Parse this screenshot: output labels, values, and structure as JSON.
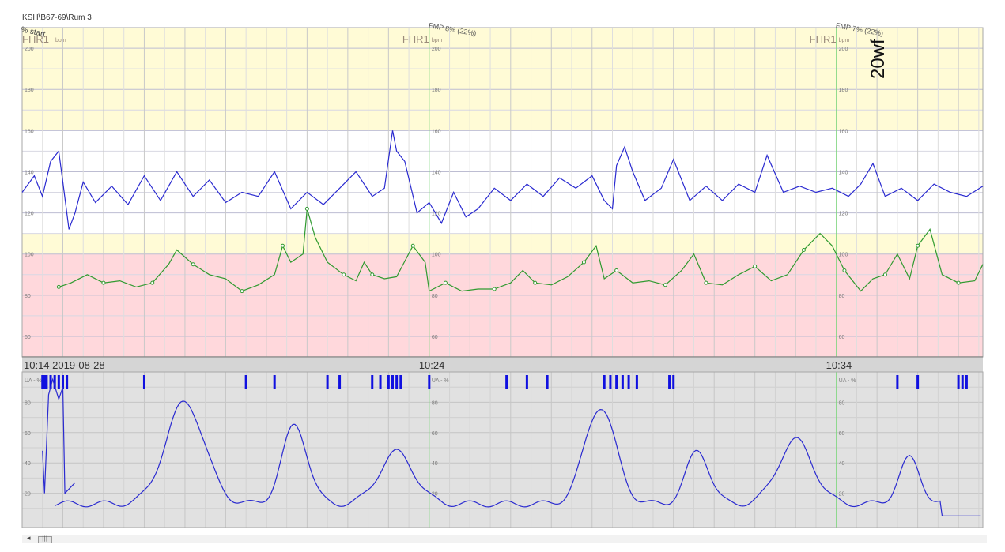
{
  "header": {
    "title": "KSH\\B67-69\\Rum 3",
    "start_note": "% start",
    "handwritten_note": "20wf"
  },
  "fmp_marks": [
    {
      "label": "FMP 8% (22%)",
      "time_min": 10.6
    },
    {
      "label": "FMP 7% (22%)",
      "time_min": 20.6
    }
  ],
  "colors": {
    "fhr": "#2a2ad0",
    "mhr": "#2f9a2f",
    "uterine": "#2a2ad0",
    "movement": "#1010e0",
    "normal_band": "#fffbd6",
    "alert_band": "#ffd8dc",
    "toco_bg": "#e1e1e1",
    "panel_divider": "#8a8a8a",
    "minute_marker": "#7fd67f"
  },
  "chart_data": [
    {
      "type": "line",
      "name": "fhr-panel",
      "channel_labels": [
        "FHR1",
        "FHR1",
        "FHR1"
      ],
      "unit": "bpm",
      "ylim": [
        50,
        210
      ],
      "yticks": [
        60,
        80,
        100,
        120,
        140,
        160,
        180,
        200
      ],
      "bands": [
        {
          "from": 160,
          "to": 210,
          "color": "normal_band"
        },
        {
          "from": 100,
          "to": 110,
          "color": "normal_band"
        },
        {
          "from": 50,
          "to": 100,
          "color": "alert_band"
        }
      ],
      "time_range_min": [
        0,
        23.6
      ],
      "series": [
        {
          "color": "fhr",
          "points": [
            [
              0,
              130
            ],
            [
              0.3,
              138
            ],
            [
              0.5,
              128
            ],
            [
              0.7,
              145
            ],
            [
              0.9,
              150
            ],
            [
              1.0,
              135
            ],
            [
              1.15,
              112
            ],
            [
              1.3,
              120
            ],
            [
              1.5,
              135
            ],
            [
              1.8,
              125
            ],
            [
              2.2,
              133
            ],
            [
              2.6,
              124
            ],
            [
              3.0,
              138
            ],
            [
              3.4,
              126
            ],
            [
              3.8,
              140
            ],
            [
              4.2,
              128
            ],
            [
              4.6,
              136
            ],
            [
              5.0,
              125
            ],
            [
              5.4,
              130
            ],
            [
              5.8,
              128
            ],
            [
              6.2,
              140
            ],
            [
              6.6,
              122
            ],
            [
              7.0,
              130
            ],
            [
              7.4,
              124
            ],
            [
              7.8,
              132
            ],
            [
              8.2,
              140
            ],
            [
              8.6,
              128
            ],
            [
              8.9,
              132
            ],
            [
              9.1,
              160
            ],
            [
              9.2,
              150
            ],
            [
              9.4,
              145
            ],
            [
              9.7,
              120
            ],
            [
              10.0,
              125
            ],
            [
              10.3,
              115
            ],
            [
              10.6,
              130
            ],
            [
              10.9,
              118
            ],
            [
              11.2,
              122
            ],
            [
              11.6,
              132
            ],
            [
              12.0,
              126
            ],
            [
              12.4,
              134
            ],
            [
              12.8,
              128
            ],
            [
              13.2,
              137
            ],
            [
              13.6,
              132
            ],
            [
              14.0,
              138
            ],
            [
              14.3,
              126
            ],
            [
              14.5,
              122
            ],
            [
              14.6,
              143
            ],
            [
              14.8,
              152
            ],
            [
              15.0,
              140
            ],
            [
              15.3,
              126
            ],
            [
              15.7,
              132
            ],
            [
              16.0,
              146
            ],
            [
              16.4,
              126
            ],
            [
              16.8,
              133
            ],
            [
              17.2,
              126
            ],
            [
              17.6,
              134
            ],
            [
              18.0,
              130
            ],
            [
              18.3,
              148
            ],
            [
              18.7,
              130
            ],
            [
              19.1,
              133
            ],
            [
              19.5,
              130
            ],
            [
              19.9,
              132
            ],
            [
              20.3,
              128
            ],
            [
              20.6,
              134
            ],
            [
              20.9,
              144
            ],
            [
              21.2,
              128
            ],
            [
              21.6,
              132
            ],
            [
              22.0,
              126
            ],
            [
              22.4,
              134
            ],
            [
              22.8,
              130
            ],
            [
              23.2,
              128
            ],
            [
              23.6,
              133
            ]
          ]
        },
        {
          "color": "mhr",
          "points": [
            [
              0.9,
              84
            ],
            [
              1.2,
              86
            ],
            [
              1.6,
              90
            ],
            [
              2.0,
              86
            ],
            [
              2.4,
              87
            ],
            [
              2.8,
              84
            ],
            [
              3.2,
              86
            ],
            [
              3.6,
              95
            ],
            [
              3.8,
              102
            ],
            [
              4.2,
              95
            ],
            [
              4.6,
              90
            ],
            [
              5.0,
              88
            ],
            [
              5.4,
              82
            ],
            [
              5.8,
              85
            ],
            [
              6.2,
              90
            ],
            [
              6.4,
              104
            ],
            [
              6.6,
              96
            ],
            [
              6.9,
              100
            ],
            [
              7.0,
              122
            ],
            [
              7.2,
              108
            ],
            [
              7.5,
              96
            ],
            [
              7.9,
              90
            ],
            [
              8.2,
              87
            ],
            [
              8.4,
              96
            ],
            [
              8.6,
              90
            ],
            [
              8.9,
              88
            ],
            [
              9.2,
              89
            ],
            [
              9.6,
              104
            ],
            [
              9.9,
              96
            ],
            [
              10.0,
              82
            ],
            [
              10.4,
              86
            ],
            [
              10.8,
              82
            ],
            [
              11.2,
              83
            ],
            [
              11.6,
              83
            ],
            [
              12.0,
              86
            ],
            [
              12.3,
              92
            ],
            [
              12.6,
              86
            ],
            [
              13.0,
              85
            ],
            [
              13.4,
              89
            ],
            [
              13.8,
              96
            ],
            [
              14.1,
              104
            ],
            [
              14.3,
              88
            ],
            [
              14.6,
              92
            ],
            [
              15.0,
              86
            ],
            [
              15.4,
              87
            ],
            [
              15.8,
              85
            ],
            [
              16.2,
              92
            ],
            [
              16.5,
              100
            ],
            [
              16.8,
              86
            ],
            [
              17.2,
              85
            ],
            [
              17.6,
              90
            ],
            [
              18.0,
              94
            ],
            [
              18.4,
              87
            ],
            [
              18.8,
              90
            ],
            [
              19.2,
              102
            ],
            [
              19.6,
              110
            ],
            [
              19.9,
              104
            ],
            [
              20.2,
              92
            ],
            [
              20.6,
              82
            ],
            [
              20.9,
              88
            ],
            [
              21.2,
              90
            ],
            [
              21.5,
              100
            ],
            [
              21.8,
              88
            ],
            [
              22.0,
              104
            ],
            [
              22.3,
              112
            ],
            [
              22.6,
              90
            ],
            [
              23.0,
              86
            ],
            [
              23.4,
              87
            ],
            [
              23.6,
              95
            ]
          ]
        }
      ]
    },
    {
      "type": "line",
      "name": "toco-panel",
      "start_label": "10:14 2019-08-28",
      "time_labels": [
        {
          "label": "10:24",
          "time_min": 10
        },
        {
          "label": "10:34",
          "time_min": 20
        }
      ],
      "channel_label": "UA - %",
      "ylim": [
        0,
        100
      ],
      "yticks": [
        20,
        40,
        60,
        80
      ],
      "time_range_min": [
        0,
        23.6
      ],
      "movement_marks_min": [
        0.5,
        0.55,
        0.6,
        0.7,
        0.8,
        0.9,
        1.0,
        1.1,
        3.0,
        5.5,
        6.2,
        7.5,
        7.8,
        8.6,
        8.8,
        9.0,
        9.1,
        9.2,
        9.3,
        10.0,
        11.9,
        12.4,
        12.9,
        14.3,
        14.45,
        14.6,
        14.75,
        14.9,
        15.1,
        15.9,
        16.0,
        21.5,
        22.0,
        23.0,
        23.1,
        23.2
      ]
    }
  ]
}
